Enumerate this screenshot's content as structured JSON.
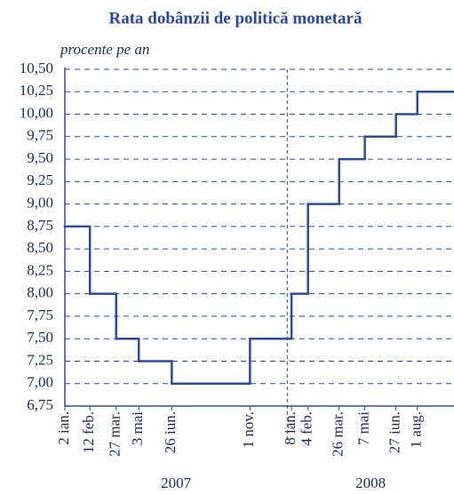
{
  "chart_data": {
    "type": "step",
    "title": "Rata dobânzii de politică monetară",
    "subtitle": "procente pe an",
    "series": [
      {
        "name": "Rata dobânzii de politică monetară",
        "color": "#2e4a9a",
        "x": [
          "2007-01-02",
          "2007-02-12",
          "2007-03-27",
          "2007-05-03",
          "2007-06-26",
          "2007-11-01",
          "2008-01-08",
          "2008-02-04",
          "2008-03-26",
          "2008-05-07",
          "2008-06-27",
          "2008-08-01"
        ],
        "values": [
          8.75,
          8.0,
          7.5,
          7.25,
          7.0,
          7.5,
          8.0,
          9.0,
          9.5,
          9.75,
          10.0,
          10.25
        ]
      }
    ],
    "xlim": [
      "2007-01-02",
      "2008-09-30"
    ],
    "xticks": [
      {
        "value": "2007-01-02",
        "label": "2 ian."
      },
      {
        "value": "2007-02-12",
        "label": "12 feb."
      },
      {
        "value": "2007-03-27",
        "label": "27 mar."
      },
      {
        "value": "2007-05-03",
        "label": "3 mai"
      },
      {
        "value": "2007-06-26",
        "label": "26 iun."
      },
      {
        "value": "2007-11-01",
        "label": "1 nov."
      },
      {
        "value": "2008-01-08",
        "label": "8 ian."
      },
      {
        "value": "2008-02-04",
        "label": "4 feb."
      },
      {
        "value": "2008-03-26",
        "label": "26 mar."
      },
      {
        "value": "2008-05-07",
        "label": "7 mai"
      },
      {
        "value": "2008-06-27",
        "label": "27 iun."
      },
      {
        "value": "2008-08-01",
        "label": "1 aug."
      }
    ],
    "year_labels": [
      "2007",
      "2008"
    ],
    "ylim": [
      6.75,
      10.5
    ],
    "yticks": [
      {
        "value": 6.75,
        "label": "6,75"
      },
      {
        "value": 7.0,
        "label": "7,00"
      },
      {
        "value": 7.25,
        "label": "7,25"
      },
      {
        "value": 7.5,
        "label": "7,50"
      },
      {
        "value": 7.75,
        "label": "7,75"
      },
      {
        "value": 8.0,
        "label": "8,00"
      },
      {
        "value": 8.25,
        "label": "8,25"
      },
      {
        "value": 8.5,
        "label": "8,50"
      },
      {
        "value": 8.75,
        "label": "8,75"
      },
      {
        "value": 9.0,
        "label": "9,00"
      },
      {
        "value": 9.25,
        "label": "9,25"
      },
      {
        "value": 9.5,
        "label": "9,50"
      },
      {
        "value": 9.75,
        "label": "9,75"
      },
      {
        "value": 10.0,
        "label": "10,00"
      },
      {
        "value": 10.25,
        "label": "10,25"
      },
      {
        "value": 10.5,
        "label": "10,50"
      }
    ],
    "grid": true
  }
}
